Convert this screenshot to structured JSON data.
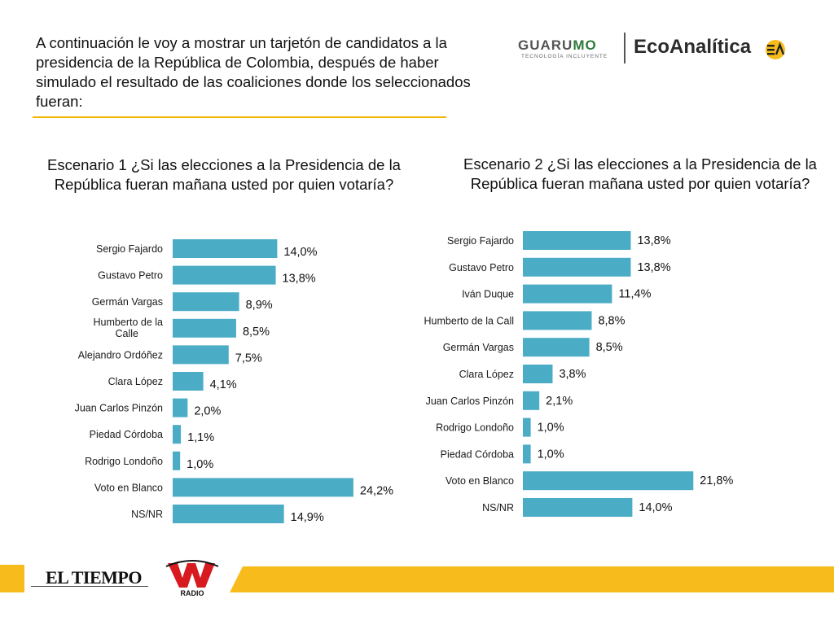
{
  "intro": {
    "text": "A continuación le voy a mostrar un tarjetón de candidatos a la presidencia de la República de Colombia, después de haber simulado el resultado de las coaliciones donde los seleccionados fueran:"
  },
  "logos": {
    "guarumo_a": "GUARU",
    "guarumo_b": "MO",
    "guarumo_sub": "TECNOLOGÍA INCLUYENTE",
    "ecoanalitica": "EcoAnalítica",
    "eltiempo": "EL TIEMPO",
    "radio": "RADIO"
  },
  "colors": {
    "bar": "#4bacc6",
    "accent": "#f7bc1c",
    "text": "#1a1a1a"
  },
  "chart_data": [
    {
      "type": "bar",
      "orientation": "horizontal",
      "title": "Escenario 1 ¿Si las elecciones a la Presidencia de la República fueran mañana usted por quien votaría?",
      "categories": [
        "Sergio Fajardo",
        "Gustavo Petro",
        "Germán Vargas",
        "Humberto de la Calle",
        "Alejandro Ordóñez",
        "Clara López",
        "Juan Carlos Pinzón",
        "Piedad Córdoba",
        "Rodrigo Londoño",
        "Voto en Blanco",
        "NS/NR"
      ],
      "values": [
        14.0,
        13.8,
        8.9,
        8.5,
        7.5,
        4.1,
        2.0,
        1.1,
        1.0,
        24.2,
        14.9
      ],
      "labels": [
        "14,0%",
        "13,8%",
        "8,9%",
        "8,5%",
        "7,5%",
        "4,1%",
        "2,0%",
        "1,1%",
        "1,0%",
        "24,2%",
        "14,9%"
      ],
      "unit": "%"
    },
    {
      "type": "bar",
      "orientation": "horizontal",
      "title": "Escenario 2 ¿Si las elecciones a la Presidencia de la República fueran mañana usted por quien votaría?",
      "categories": [
        "Sergio Fajardo",
        "Gustavo Petro",
        "Iván Duque",
        "Humberto de la Call",
        "Germán Vargas",
        "Clara López",
        "Juan Carlos Pinzón",
        "Rodrigo Londoño",
        "Piedad Córdoba",
        "Voto en Blanco",
        "NS/NR"
      ],
      "values": [
        13.8,
        13.8,
        11.4,
        8.8,
        8.5,
        3.8,
        2.1,
        1.0,
        1.0,
        21.8,
        14.0
      ],
      "labels": [
        "13,8%",
        "13,8%",
        "11,4%",
        "8,8%",
        "8,5%",
        "3,8%",
        "2,1%",
        "1,0%",
        "1,0%",
        "21,8%",
        "14,0%"
      ],
      "unit": "%"
    }
  ]
}
